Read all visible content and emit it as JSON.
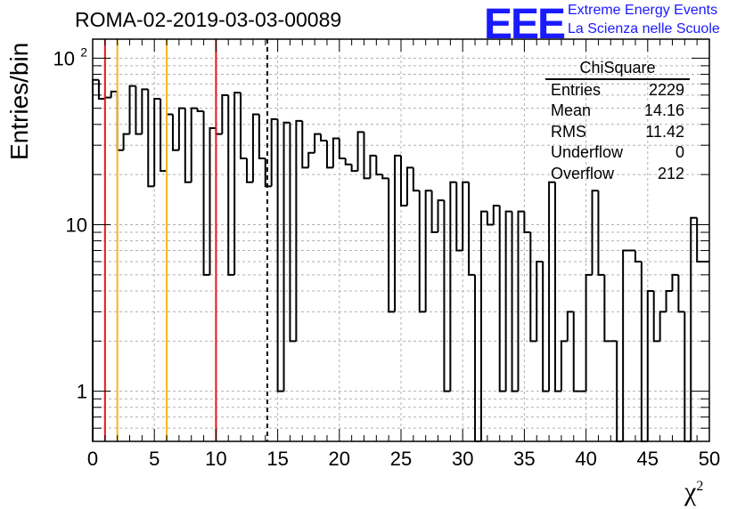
{
  "header": {
    "title": "ROMA-02-2019-03-03-00089",
    "logo_text": "EEE",
    "brand_line1": "Extreme Energy Events",
    "brand_line2": "La Scienza nelle Scuole"
  },
  "stats_box": {
    "title": "ChiSquare",
    "rows": [
      {
        "label": "Entries",
        "value": "2229"
      },
      {
        "label": "Mean",
        "value": "14.16"
      },
      {
        "label": "RMS",
        "value": "11.42"
      },
      {
        "label": "Underflow",
        "value": "0"
      },
      {
        "label": "Overflow",
        "value": "212"
      }
    ]
  },
  "chart_data": {
    "type": "bar",
    "style": "step-histogram",
    "xlabel": "χ",
    "xlabel_superscript": "2",
    "ylabel": "Entries/bin",
    "xlim": [
      0,
      50
    ],
    "ylim": [
      0.5,
      130
    ],
    "yscale": "log",
    "grid": true,
    "x_ticks": [
      0,
      5,
      10,
      15,
      20,
      25,
      30,
      35,
      40,
      45,
      50
    ],
    "y_ticks": [
      {
        "value": 1,
        "label": "1"
      },
      {
        "value": 10,
        "label": "10"
      },
      {
        "value": 100,
        "label": "10",
        "sup": "2"
      }
    ],
    "bin_width": 0.5,
    "values": [
      74,
      57,
      58,
      63,
      28,
      35,
      68,
      35,
      65,
      17,
      57,
      21,
      46,
      28,
      50,
      18,
      50,
      48,
      5,
      38,
      35,
      60,
      5,
      62,
      25,
      18,
      46,
      25,
      17,
      43,
      1,
      41,
      2,
      42,
      22,
      27,
      35,
      32,
      22,
      33,
      25,
      23,
      21,
      36,
      19,
      26,
      20,
      19,
      3,
      26,
      13,
      22,
      16,
      3,
      16,
      9,
      14,
      1,
      18,
      7,
      18,
      5,
      0.4,
      12,
      10,
      13,
      1,
      12,
      1,
      12,
      9,
      2,
      6,
      1,
      18,
      1,
      2,
      3,
      1,
      1,
      5,
      16,
      5,
      2,
      2,
      0.4,
      7,
      7,
      6,
      0.4,
      4,
      2,
      3,
      4,
      5,
      3,
      0.4,
      11,
      6,
      6
    ],
    "vertical_lines": [
      {
        "x": 1,
        "color": "#e8161b",
        "style": "solid"
      },
      {
        "x": 2,
        "color": "#f5b81c",
        "style": "solid"
      },
      {
        "x": 6,
        "color": "#f5b81c",
        "style": "solid"
      },
      {
        "x": 10,
        "color": "#e8161b",
        "style": "solid"
      },
      {
        "x": 14.16,
        "color": "#000000",
        "style": "dashed"
      }
    ]
  }
}
